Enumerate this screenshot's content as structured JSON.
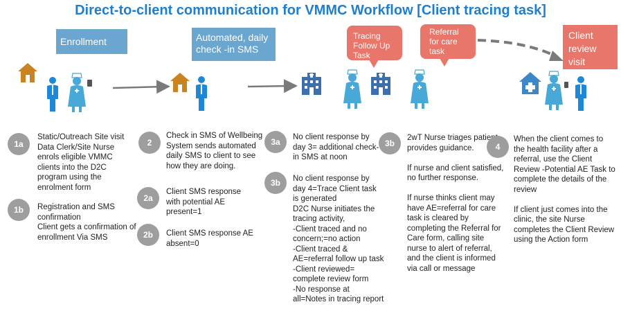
{
  "title": "Direct-to-client communication for VMMC Workflow [Client tracing task]",
  "boxes": {
    "enrollment": "Enrollment",
    "checkin": "Automated, daily check -in SMS",
    "tracing": "Tracing Follow Up Task",
    "referral": "Referral for care task",
    "review": "Client review visit"
  },
  "steps": [
    {
      "badge": "1a",
      "text": "Static/Outreach Site visit\nData Clerk/Site Nurse enrols eligible VMMC clients into the D2C program using the enrolment form"
    },
    {
      "badge": "1b",
      "text": "Registration and SMS confirmation\nClient gets a confirmation of enrollment Via SMS"
    },
    {
      "badge": "2",
      "text": "Check in SMS of Wellbeing\nSystem sends automated daily SMS to client to see how  they are doing."
    },
    {
      "badge": "2a",
      "text": "Client SMS response with potential  AE present=1"
    },
    {
      "badge": "2b",
      "text": "Client SMS response AE absent=0"
    },
    {
      "badge": "3a",
      "text": "No client response by day 3= additional check-in SMS at noon"
    },
    {
      "badge": "3b",
      "text": "No client response by day 4=Trace Client task is generated\nD2C Nurse initiates the tracing activity,\n-Client traced and no concern;=no action\n-Client traced & AE=referral follow up task\n-Client reviewed= complete review form\n-No response at all=Notes in tracing report"
    },
    {
      "badge": "3b",
      "text": "2wT Nurse triages patient, provides guidance.\n\nIf nurse and client satisfied, no further response.\n\nIf nurse thinks client may have AE=referral for care task is cleared by completing the Referral for Care form, calling site nurse to alert of referral, and the client is informed via call or message"
    },
    {
      "badge": "4",
      "text": "When the client comes to the health facility after a referral, use the Client Review -Potential AE Task to complete the details of the review\n\nIf client just comes into the clinic, the site Nurse completes the Client Review using the Action form"
    }
  ]
}
